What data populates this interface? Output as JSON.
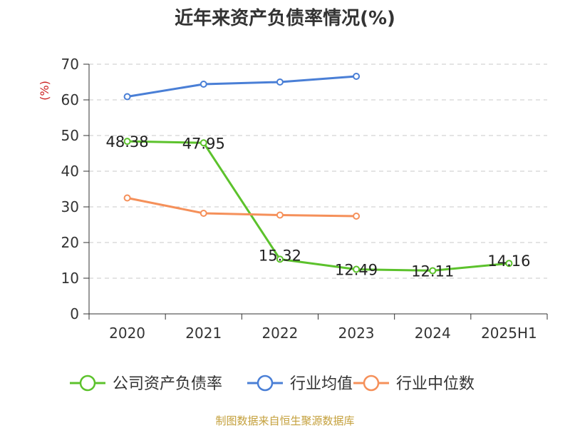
{
  "chart_data": {
    "type": "line",
    "title": "近年来资产负债率情况(%)",
    "ylabel": "(%)",
    "xlabel": "",
    "categories": [
      "2020",
      "2021",
      "2022",
      "2023",
      "2024",
      "2025H1"
    ],
    "ylim": [
      0,
      70
    ],
    "yticks": [
      0,
      10,
      20,
      30,
      40,
      50,
      60,
      70
    ],
    "grid": true,
    "legend_position": "bottom",
    "series": [
      {
        "name": "公司资产负债率",
        "color": "#5cc22c",
        "values": [
          48.38,
          47.95,
          15.32,
          12.49,
          12.11,
          14.16
        ],
        "labels": [
          "48.38",
          "47.95",
          "15.32",
          "12.49",
          "12.11",
          "14.16"
        ]
      },
      {
        "name": "行业均值",
        "color": "#4a7fd6",
        "values": [
          60.9,
          64.4,
          65.0,
          66.6,
          null,
          null
        ]
      },
      {
        "name": "行业中位数",
        "color": "#f5905a",
        "values": [
          32.5,
          28.2,
          27.7,
          27.4,
          null,
          null
        ]
      }
    ]
  },
  "ylabel_color": "#cc2222",
  "source": {
    "text": "制图数据来自恒生聚源数据库",
    "color": "#c4a03c"
  }
}
